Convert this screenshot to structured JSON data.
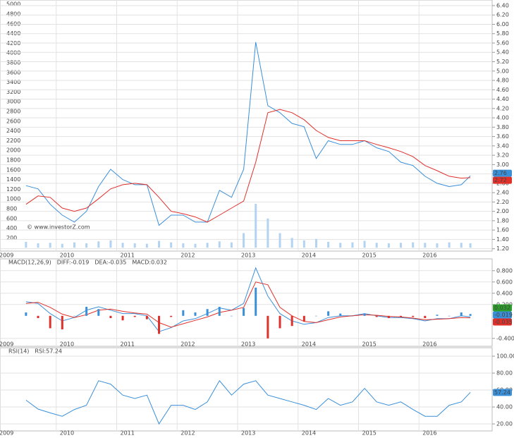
{
  "chart_data": [
    {
      "type": "line",
      "annotation": "© www.investorZ.com",
      "x": [
        2009.5,
        2009.7,
        2009.9,
        2010.1,
        2010.3,
        2010.5,
        2010.7,
        2010.9,
        2011.1,
        2011.3,
        2011.5,
        2011.7,
        2011.9,
        2012.1,
        2012.3,
        2012.5,
        2012.7,
        2012.9,
        2013.1,
        2013.3,
        2013.5,
        2013.7,
        2013.9,
        2014.1,
        2014.3,
        2014.5,
        2014.7,
        2014.9,
        2015.1,
        2015.3,
        2015.5,
        2015.7,
        2015.9,
        2016.1,
        2016.3,
        2016.5,
        2016.7,
        2016.85
      ],
      "xlim": [
        2009.07,
        2017.21
      ],
      "xticks": [
        2009,
        2010,
        2011,
        2012,
        2013,
        2014,
        2015,
        2016
      ],
      "ylim": [
        -70,
        5090
      ],
      "yticks": [
        200,
        400,
        600,
        800,
        1000,
        1200,
        1400,
        1600,
        1800,
        2000,
        2200,
        2400,
        2600,
        2800,
        3000,
        3200,
        3400,
        3600,
        3800,
        4000,
        4200,
        4400,
        4600,
        4800,
        5000
      ],
      "y2lim": [
        1.15,
        6.52
      ],
      "y2ticks": [
        {
          "value": 1.2,
          "label": "1.20"
        },
        {
          "value": 1.4,
          "label": "1.40"
        },
        {
          "value": 1.6,
          "label": "1.60"
        },
        {
          "value": 1.8,
          "label": "1.80"
        },
        {
          "value": 2.0,
          "label": "2.00"
        },
        {
          "value": 2.2,
          "label": "2.20"
        },
        {
          "value": 2.4,
          "label": "2.40"
        },
        {
          "value": 2.6,
          "label": "2.60"
        },
        {
          "value": 2.8,
          "label": "2.80"
        },
        {
          "value": 3.0,
          "label": "3.00"
        },
        {
          "value": 3.2,
          "label": "3.20"
        },
        {
          "value": 3.4,
          "label": "3.40"
        },
        {
          "value": 3.6,
          "label": "3.60"
        },
        {
          "value": 3.8,
          "label": "3.80"
        },
        {
          "value": 4.0,
          "label": "4.00"
        },
        {
          "value": 4.2,
          "label": "4.20"
        },
        {
          "value": 4.4,
          "label": "4.40"
        },
        {
          "value": 4.6,
          "label": "4.60"
        },
        {
          "value": 4.8,
          "label": "4.80"
        },
        {
          "value": 5.0,
          "label": "5.00"
        },
        {
          "value": 5.2,
          "label": "5.20"
        },
        {
          "value": 5.4,
          "label": "5.40"
        },
        {
          "value": 5.6,
          "label": "5.60"
        },
        {
          "value": 5.8,
          "label": "5.80"
        },
        {
          "value": 6.0,
          "label": "6.00"
        },
        {
          "value": 6.2,
          "label": "6.20"
        },
        {
          "value": 6.4,
          "label": "6.40"
        }
      ],
      "grid": true,
      "series": [
        {
          "type": "bar",
          "color": "#b3d3f2",
          "values": [
            120,
            90,
            100,
            80,
            110,
            90,
            130,
            150,
            100,
            90,
            80,
            140,
            110,
            90,
            80,
            100,
            130,
            110,
            300,
            900,
            600,
            300,
            200,
            150,
            180,
            120,
            100,
            110,
            140,
            100,
            90,
            100,
            110,
            100,
            90,
            110,
            100,
            90
          ]
        },
        {
          "axis": "y2",
          "color": "#3a8fd9",
          "last_label": true,
          "values": [
            2.55,
            2.48,
            2.15,
            1.92,
            1.77,
            2.0,
            2.53,
            2.9,
            2.68,
            2.57,
            2.57,
            1.7,
            1.92,
            1.92,
            1.77,
            1.77,
            2.45,
            2.3,
            2.9,
            5.62,
            4.26,
            4.11,
            3.88,
            3.81,
            3.13,
            3.51,
            3.43,
            3.43,
            3.51,
            3.36,
            3.28,
            3.05,
            2.98,
            2.75,
            2.6,
            2.53,
            2.57,
            2.76
          ]
        },
        {
          "axis": "y2",
          "color": "#e0302a",
          "last_label": true,
          "values": [
            2.15,
            2.33,
            2.3,
            2.07,
            2.0,
            2.07,
            2.27,
            2.48,
            2.57,
            2.6,
            2.57,
            2.3,
            2.0,
            1.95,
            1.88,
            1.77,
            1.92,
            2.07,
            2.22,
            3.05,
            4.11,
            4.18,
            4.11,
            3.96,
            3.73,
            3.58,
            3.51,
            3.51,
            3.51,
            3.43,
            3.36,
            3.28,
            3.17,
            2.98,
            2.87,
            2.75,
            2.71,
            2.72
          ]
        }
      ]
    },
    {
      "type": "macd",
      "title": "MACD(12,26,9)",
      "x": [
        2009.5,
        2009.7,
        2009.9,
        2010.1,
        2010.3,
        2010.5,
        2010.7,
        2010.9,
        2011.1,
        2011.3,
        2011.5,
        2011.7,
        2011.9,
        2012.1,
        2012.3,
        2012.5,
        2012.7,
        2012.9,
        2013.1,
        2013.3,
        2013.5,
        2013.7,
        2013.9,
        2014.1,
        2014.3,
        2014.5,
        2014.7,
        2014.9,
        2015.1,
        2015.3,
        2015.5,
        2015.7,
        2015.9,
        2016.1,
        2016.3,
        2016.5,
        2016.7,
        2016.85
      ],
      "xlim": [
        2009.07,
        2017.21
      ],
      "xticks": [
        2009,
        2010,
        2011,
        2012,
        2013,
        2014,
        2015,
        2016
      ],
      "ylim": [
        -0.54,
        1.01
      ],
      "yticks": [
        {
          "value": 0.8,
          "label": "0.800"
        },
        {
          "value": 0.6,
          "label": "0.600"
        },
        {
          "value": 0.4,
          "label": "0.400"
        },
        {
          "value": 0.2,
          "label": "0.200"
        },
        {
          "value": -0.4,
          "label": "-0.400"
        }
      ],
      "grid": true,
      "up_color": "#3a8fd9",
      "down_color": "#e0302a",
      "series": [
        {
          "name": "DIFF:-0.019",
          "color": "#3a8fd9",
          "last_label": true,
          "values": [
            0.25,
            0.22,
            0.04,
            -0.09,
            -0.03,
            0.1,
            0.16,
            0.1,
            0.04,
            0.04,
            0,
            -0.28,
            -0.21,
            -0.09,
            -0.05,
            0.04,
            0.14,
            0.1,
            0.22,
            0.85,
            0.35,
            0.04,
            -0.09,
            -0.15,
            -0.12,
            -0.03,
            0,
            0,
            0.04,
            0,
            -0.03,
            -0.03,
            -0.05,
            -0.09,
            -0.05,
            -0.05,
            0,
            -0.019
          ]
        },
        {
          "name": "DEA:-0.035",
          "color": "#e0302a",
          "last_label": true,
          "values": [
            0.22,
            0.24,
            0.15,
            0.03,
            -0.03,
            0.02,
            0.1,
            0.12,
            0.08,
            0.05,
            0.03,
            -0.12,
            -0.2,
            -0.14,
            -0.08,
            -0.02,
            0.06,
            0.1,
            0.15,
            0.6,
            0.55,
            0.15,
            0,
            -0.1,
            -0.12,
            -0.07,
            -0.02,
            0,
            0.02,
            0.01,
            -0.01,
            -0.02,
            -0.04,
            -0.07,
            -0.06,
            -0.05,
            -0.03,
            -0.035
          ]
        },
        {
          "name": "MACD:0.032",
          "type": "bar",
          "color": "#2a9d2a",
          "last_label": true,
          "values": [
            0.06,
            -0.04,
            -0.22,
            -0.24,
            0,
            0.16,
            0.12,
            -0.04,
            -0.08,
            -0.02,
            -0.06,
            -0.32,
            -0.02,
            0.1,
            0.06,
            0.12,
            0.16,
            0,
            0.14,
            0.5,
            -0.4,
            -0.22,
            -0.18,
            -0.1,
            0,
            0.08,
            0.04,
            0,
            0.04,
            -0.02,
            -0.04,
            -0.02,
            -0.02,
            -0.04,
            0.02,
            0,
            0.06,
            0.032
          ]
        }
      ]
    },
    {
      "type": "line",
      "title": "RSI(14)",
      "x": [
        2009.5,
        2009.7,
        2009.9,
        2010.1,
        2010.3,
        2010.5,
        2010.7,
        2010.9,
        2011.1,
        2011.3,
        2011.5,
        2011.7,
        2011.9,
        2012.1,
        2012.3,
        2012.5,
        2012.7,
        2012.9,
        2013.1,
        2013.3,
        2013.5,
        2013.7,
        2013.9,
        2014.1,
        2014.3,
        2014.5,
        2014.7,
        2014.9,
        2015.1,
        2015.3,
        2015.5,
        2015.7,
        2015.9,
        2016.1,
        2016.3,
        2016.5,
        2016.7,
        2016.85
      ],
      "xlim": [
        2009.07,
        2017.21
      ],
      "xticks": [
        2009,
        2010,
        2011,
        2012,
        2013,
        2014,
        2015,
        2016
      ],
      "ylim": [
        11.7,
        110
      ],
      "yticks": [
        {
          "value": 100,
          "label": "100.00"
        },
        {
          "value": 80,
          "label": "80.00"
        },
        {
          "value": 60,
          "label": "60.00"
        },
        {
          "value": 40,
          "label": "40.00"
        },
        {
          "value": 20,
          "label": "20.00"
        }
      ],
      "grid": true,
      "series": [
        {
          "name": "RSI:57.24",
          "color": "#3a8fd9",
          "last_label": true,
          "values": [
            48,
            37.5,
            33,
            29,
            37,
            42,
            71,
            67,
            54,
            50,
            54,
            20,
            42,
            42,
            37,
            46,
            71,
            54,
            67,
            71,
            54,
            50,
            46,
            42,
            37,
            50,
            42,
            46,
            62,
            46,
            42,
            46,
            37,
            29,
            29,
            42,
            46,
            57.24
          ]
        }
      ]
    }
  ]
}
